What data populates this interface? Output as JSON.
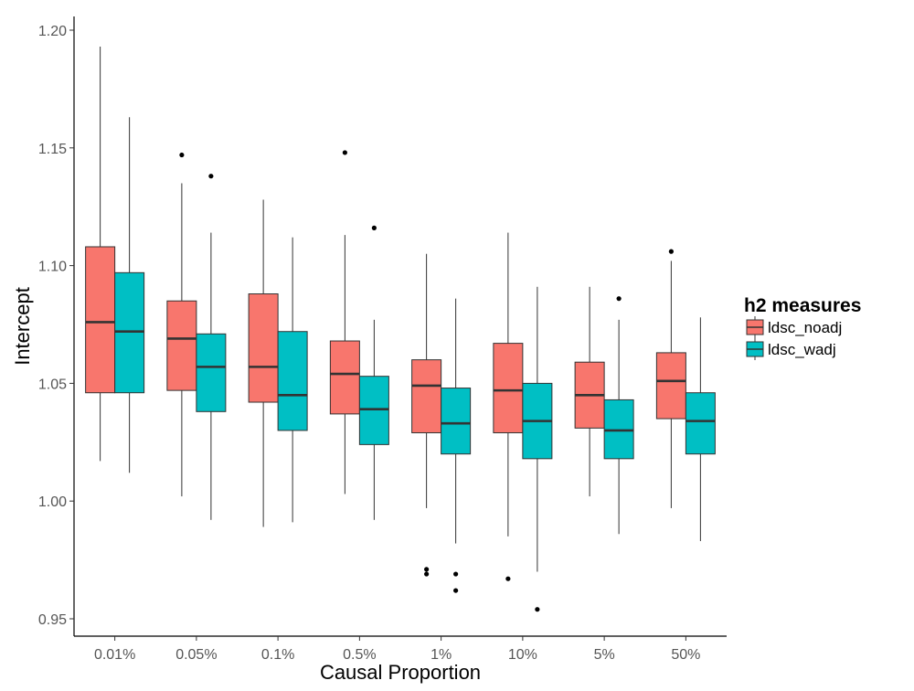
{
  "chart_data": {
    "type": "boxplot",
    "xlabel": "Causal Proportion",
    "ylabel": "Intercept",
    "ylim": [
      0.948,
      1.205
    ],
    "yticks": [
      0.95,
      1.0,
      1.05,
      1.1,
      1.15,
      1.2
    ],
    "ytick_labels": [
      "0.95",
      "1.00",
      "1.05",
      "1.10",
      "1.15",
      "1.20"
    ],
    "categories": [
      "0.01%",
      "0.05%",
      "0.1%",
      "0.5%",
      "1%",
      "10%",
      "5%",
      "50%"
    ],
    "legend": {
      "title": "h2 measures",
      "position": "right"
    },
    "grid": false,
    "series": [
      {
        "name": "ldsc_noadj",
        "color": "#F8766D",
        "boxes": [
          {
            "whisker_low": 1.017,
            "q1": 1.046,
            "median": 1.076,
            "q3": 1.108,
            "whisker_high": 1.193,
            "outliers": []
          },
          {
            "whisker_low": 1.002,
            "q1": 1.047,
            "median": 1.069,
            "q3": 1.085,
            "whisker_high": 1.135,
            "outliers": [
              1.147
            ]
          },
          {
            "whisker_low": 0.989,
            "q1": 1.042,
            "median": 1.057,
            "q3": 1.088,
            "whisker_high": 1.128,
            "outliers": []
          },
          {
            "whisker_low": 1.003,
            "q1": 1.037,
            "median": 1.054,
            "q3": 1.068,
            "whisker_high": 1.113,
            "outliers": [
              1.148
            ]
          },
          {
            "whisker_low": 0.997,
            "q1": 1.029,
            "median": 1.049,
            "q3": 1.06,
            "whisker_high": 1.105,
            "outliers": [
              0.971,
              0.969
            ]
          },
          {
            "whisker_low": 0.985,
            "q1": 1.029,
            "median": 1.047,
            "q3": 1.067,
            "whisker_high": 1.114,
            "outliers": [
              0.967
            ]
          },
          {
            "whisker_low": 1.002,
            "q1": 1.031,
            "median": 1.045,
            "q3": 1.059,
            "whisker_high": 1.091,
            "outliers": []
          },
          {
            "whisker_low": 0.997,
            "q1": 1.035,
            "median": 1.051,
            "q3": 1.063,
            "whisker_high": 1.102,
            "outliers": [
              1.106
            ]
          }
        ]
      },
      {
        "name": "ldsc_wadj",
        "color": "#00BFC4",
        "boxes": [
          {
            "whisker_low": 1.012,
            "q1": 1.046,
            "median": 1.072,
            "q3": 1.097,
            "whisker_high": 1.163,
            "outliers": []
          },
          {
            "whisker_low": 0.992,
            "q1": 1.038,
            "median": 1.057,
            "q3": 1.071,
            "whisker_high": 1.114,
            "outliers": [
              1.138
            ]
          },
          {
            "whisker_low": 0.991,
            "q1": 1.03,
            "median": 1.045,
            "q3": 1.072,
            "whisker_high": 1.112,
            "outliers": []
          },
          {
            "whisker_low": 0.992,
            "q1": 1.024,
            "median": 1.039,
            "q3": 1.053,
            "whisker_high": 1.077,
            "outliers": [
              1.116
            ]
          },
          {
            "whisker_low": 0.982,
            "q1": 1.02,
            "median": 1.033,
            "q3": 1.048,
            "whisker_high": 1.086,
            "outliers": [
              0.969,
              0.962
            ]
          },
          {
            "whisker_low": 0.97,
            "q1": 1.018,
            "median": 1.034,
            "q3": 1.05,
            "whisker_high": 1.091,
            "outliers": [
              0.954
            ]
          },
          {
            "whisker_low": 0.986,
            "q1": 1.018,
            "median": 1.03,
            "q3": 1.043,
            "whisker_high": 1.077,
            "outliers": [
              1.086
            ]
          },
          {
            "whisker_low": 0.983,
            "q1": 1.02,
            "median": 1.034,
            "q3": 1.046,
            "whisker_high": 1.078,
            "outliers": []
          }
        ]
      }
    ]
  }
}
